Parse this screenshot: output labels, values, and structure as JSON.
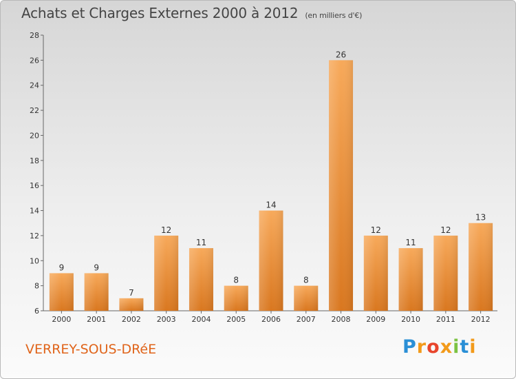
{
  "header": {
    "title": "Achats et Charges Externes 2000 à 2012",
    "subtitle": "(en milliers d'€)"
  },
  "footer": {
    "city": "VERREY-SOUS-DRéE",
    "logo_letters": [
      "P",
      "r",
      "o",
      "x",
      "i",
      "t",
      "i"
    ],
    "logo_colors": [
      "#2a8fd6",
      "#f29a1a",
      "#e8452c",
      "#f29a1a",
      "#7cc242",
      "#2a8fd6",
      "#f29a1a"
    ]
  },
  "chart_data": {
    "type": "bar",
    "categories": [
      "2000",
      "2001",
      "2002",
      "2003",
      "2004",
      "2005",
      "2006",
      "2007",
      "2008",
      "2009",
      "2010",
      "2011",
      "2012"
    ],
    "values": [
      9,
      9,
      7,
      12,
      11,
      8,
      14,
      8,
      26,
      12,
      11,
      12,
      13
    ],
    "ylim": [
      6,
      28
    ],
    "yticks": [
      6,
      8,
      10,
      12,
      14,
      16,
      18,
      20,
      22,
      24,
      26,
      28
    ],
    "grid": false,
    "bar_color_top": "#f7a95a",
    "bar_color_bottom": "#d9771f"
  }
}
